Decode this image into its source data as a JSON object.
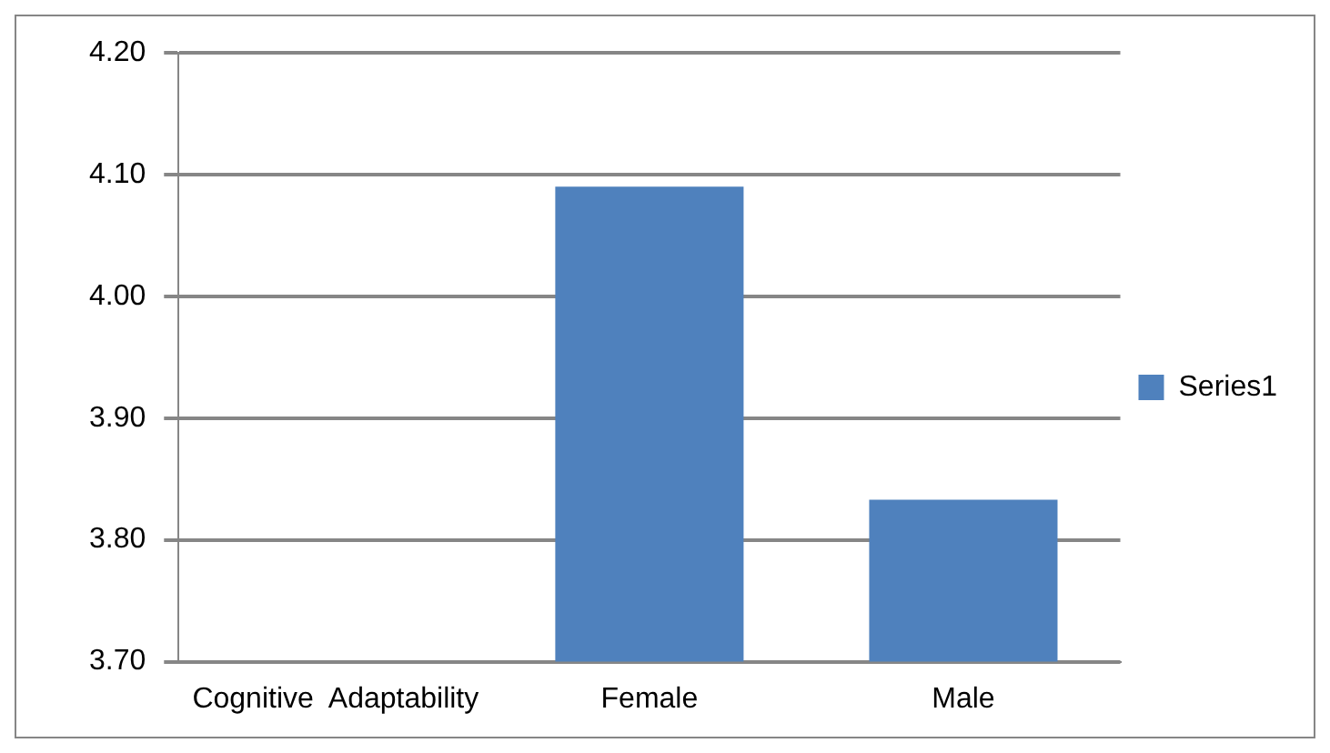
{
  "chart_data": {
    "type": "bar",
    "categories": [
      "Cognitive  Adaptability",
      "Female",
      "Male"
    ],
    "series": [
      {
        "name": "Series1",
        "color": "#4f81bd",
        "values": [
          null,
          4.09,
          3.833
        ]
      }
    ],
    "ylim": [
      3.7,
      4.2
    ],
    "yticks": [
      {
        "value": 3.7,
        "label": "3.70"
      },
      {
        "value": 3.8,
        "label": "3.80"
      },
      {
        "value": 3.9,
        "label": "3.90"
      },
      {
        "value": 4.0,
        "label": "4.00"
      },
      {
        "value": 4.1,
        "label": "4.10"
      },
      {
        "value": 4.2,
        "label": "4.20"
      }
    ],
    "grid": "y",
    "legend": "right"
  }
}
